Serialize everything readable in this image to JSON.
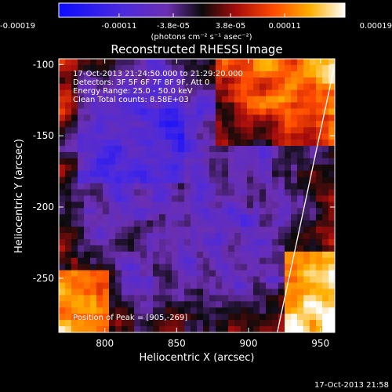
{
  "colorbar": {
    "tick_labels": [
      "-0.00019",
      "-0.00011",
      "-3.8e-05",
      "3.8e-05",
      "0.00011",
      "0.00019"
    ],
    "tick_values": [
      -0.00019,
      -0.00011,
      -3.8e-05,
      3.8e-05,
      0.00011,
      0.00019
    ],
    "range": [
      -0.00019,
      0.00019
    ],
    "units_label": "(photons cm⁻² s⁻¹ asec⁻²)",
    "colors": [
      "#1010ff",
      "#6a2cc8",
      "#0a0a0a",
      "#b01010",
      "#ff5000",
      "#ffd000",
      "#ffffff"
    ]
  },
  "chart_data": {
    "type": "heatmap",
    "title": "Reconstructed RHESSI Image",
    "xlabel": "Heliocentric X (arcsec)",
    "ylabel": "Heliocentric Y (arcsec)",
    "xlim": [
      768,
      960
    ],
    "ylim": [
      -288,
      -96
    ],
    "xticks": [
      800,
      850,
      900,
      950
    ],
    "yticks": [
      -100,
      -150,
      -200,
      -250
    ],
    "xtick_labels": [
      "800",
      "850",
      "900",
      "950"
    ],
    "ytick_labels": [
      "-100",
      "-150",
      "-200",
      "-250"
    ],
    "info_lines": [
      "17-Oct-2013 21:24:50.000 to 21:29:20.000",
      "Detectors: 3F 5F 6F 7F 8F 9F, Att 0",
      "Energy Range: 25.0 - 50.0 keV",
      "Clean     Total counts: 8.58E+03"
    ],
    "peak_label": "Position of Peak = [905,-269]",
    "peak_position": [
      905,
      -269
    ],
    "limb_line": [
      [
        920,
        -288
      ],
      [
        960,
        -100
      ]
    ],
    "grid": false
  },
  "footer": {
    "timestamp": "17-Oct-2013 21:58"
  }
}
